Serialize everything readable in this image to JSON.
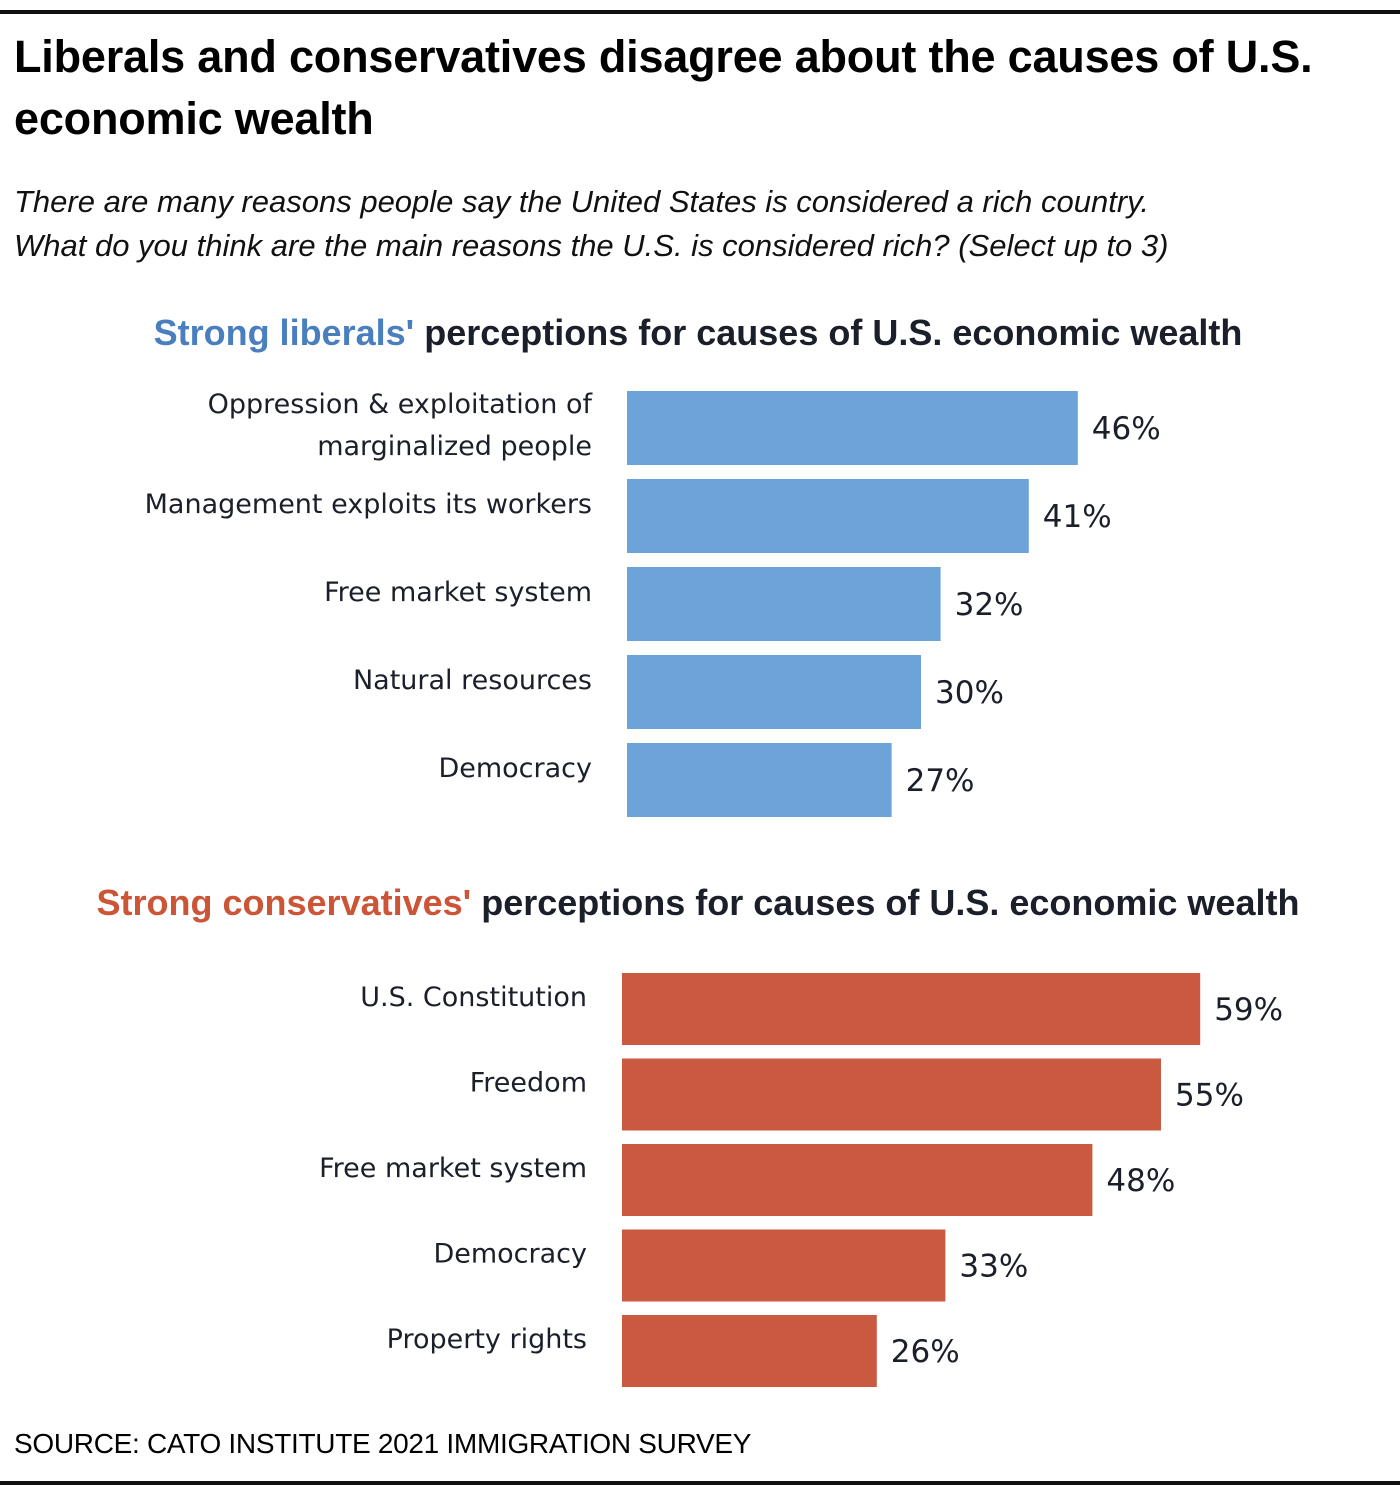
{
  "title": "Liberals and conservatives disagree about the causes of U.S. economic wealth",
  "subtitle_lines": [
    "There are many reasons people say the United States is considered a rich country.",
    "What do you think are the main reasons the U.S. is considered rich? (Select up to 3)"
  ],
  "source": "SOURCE: CATO INSTITUTE 2021 IMMIGRATION SURVEY",
  "colors": {
    "liberal": "#6ca3d8",
    "liberal_text": "#4a7fbf",
    "conservative": "#c95a40",
    "conservative_text": "#cc5437",
    "text_dark": "#1b1f2a"
  },
  "chart_data": [
    {
      "type": "bar",
      "orientation": "horizontal",
      "title_highlight": "Strong liberals'",
      "title_rest": " perceptions for causes of U.S. economic wealth",
      "categories": [
        [
          "Oppression & exploitation of",
          "marginalized people"
        ],
        [
          "Management exploits its workers"
        ],
        [
          "Free market system"
        ],
        [
          "Natural resources"
        ],
        [
          "Democracy"
        ]
      ],
      "values": [
        46,
        41,
        32,
        30,
        27
      ],
      "value_labels": [
        "46%",
        "41%",
        "32%",
        "30%",
        "27%"
      ],
      "unit": "%",
      "xlim": [
        0,
        60
      ],
      "xlabel": "",
      "ylabel": "",
      "grid": false,
      "legend": "none"
    },
    {
      "type": "bar",
      "orientation": "horizontal",
      "title_highlight": "Strong conservatives'",
      "title_rest": " perceptions for causes of U.S. economic wealth",
      "categories": [
        [
          "U.S. Constitution"
        ],
        [
          "Freedom"
        ],
        [
          "Free market system"
        ],
        [
          "Democracy"
        ],
        [
          "Property rights"
        ]
      ],
      "values": [
        59,
        55,
        48,
        33,
        26
      ],
      "value_labels": [
        "59%",
        "55%",
        "48%",
        "33%",
        "26%"
      ],
      "unit": "%",
      "xlim": [
        0,
        60
      ],
      "xlabel": "",
      "ylabel": "",
      "grid": false,
      "legend": "none"
    }
  ]
}
